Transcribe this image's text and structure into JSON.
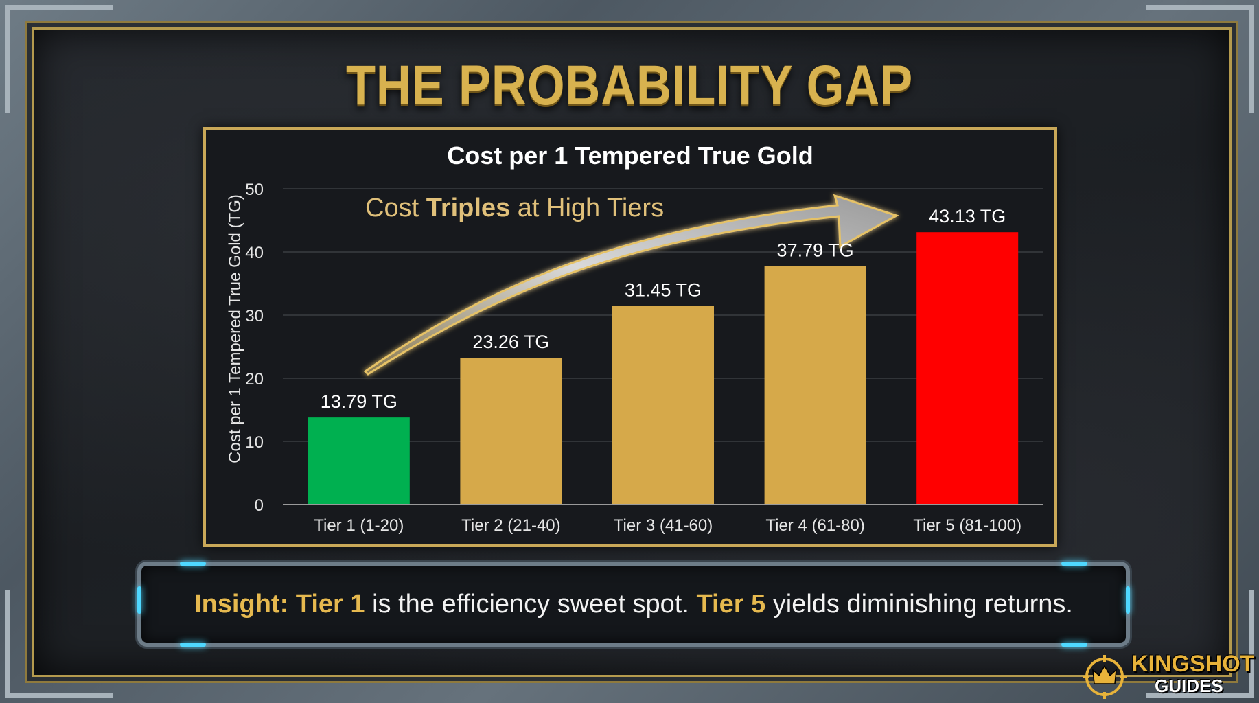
{
  "page": {
    "title": "THE PROBABILITY GAP",
    "insight": {
      "lead": "Insight:",
      "tier1": "Tier 1",
      "mid": "is the efficiency sweet spot.",
      "tier5": "Tier 5",
      "end": "yields diminishing returns."
    },
    "logo": {
      "line1": "KINGSHOT",
      "line2": "GUIDES"
    }
  },
  "colors": {
    "title": "#d8b24f",
    "tier1_bar": "#00b050",
    "mid_bar": "#d6a94a",
    "tier5_bar": "#ff0000",
    "panel_border": "#c9a858",
    "accent_cyan": "#4fd8ff"
  },
  "chart_data": {
    "type": "bar",
    "title": "Cost per 1 Tempered True Gold",
    "ylabel": "Cost per 1 Tempered True Gold (TG)",
    "xlabel": "",
    "categories": [
      "Tier 1 (1-20)",
      "Tier 2 (21-40)",
      "Tier 3 (41-60)",
      "Tier 4 (61-80)",
      "Tier 5 (81-100)"
    ],
    "values": [
      13.79,
      23.26,
      31.45,
      37.79,
      43.13
    ],
    "value_labels": [
      "13.79 TG",
      "23.26 TG",
      "31.45 TG",
      "37.79 TG",
      "43.13 TG"
    ],
    "bar_colors": [
      "#00b050",
      "#d6a94a",
      "#d6a94a",
      "#d6a94a",
      "#ff0000"
    ],
    "ylim": [
      0,
      50
    ],
    "yticks": [
      0,
      10,
      20,
      30,
      40,
      50
    ],
    "grid": true,
    "annotation": {
      "prefix": "Cost ",
      "bold": "Triples",
      "suffix": " at High Tiers"
    }
  }
}
